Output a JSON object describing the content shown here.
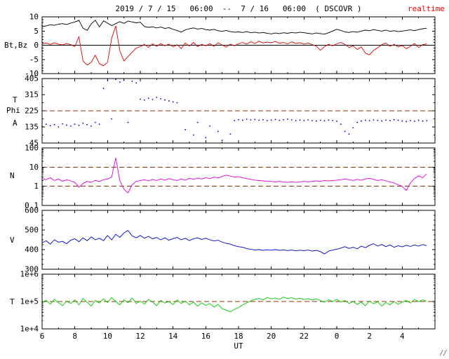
{
  "header": {
    "title": "2019 / 7 / 15   06:00  --  7 / 16   06:00  ( DSCOVR )",
    "status_label": "realtime"
  },
  "colors": {
    "accent_red": "#ff0000",
    "dashed_line": "#993300",
    "bt": "#000000",
    "bz": "#dd0000",
    "phi": "#0000cc",
    "density": "#dd00dd",
    "velocity": "#0000cc",
    "temperature": "#00cc00"
  },
  "panel_labels": {
    "bt_bz": "Bt,Bz",
    "angle_t": "T",
    "angle_phi": "Phi",
    "angle_a": "A",
    "density": "N",
    "velocity": "V",
    "temperature": "T"
  },
  "x_axis": {
    "label": "UT",
    "range": [
      6,
      30
    ],
    "minor_step": 1,
    "tick_positions": [
      6,
      8,
      10,
      12,
      14,
      16,
      18,
      20,
      22,
      24,
      26,
      28
    ],
    "tick_labels": [
      "6",
      "8",
      "10",
      "12",
      "14",
      "16",
      "18",
      "20",
      "22",
      "0",
      "2",
      "4"
    ]
  },
  "corner_mark": "⁄⁄",
  "chart_data": [
    {
      "id": "magnetic-field",
      "type": "line",
      "yscale": "linear",
      "ylim": [
        -10,
        10
      ],
      "ytick_values": [
        10,
        5,
        0,
        -5,
        -10
      ],
      "ytick_labels": [
        "10",
        "5",
        "0",
        "-5",
        "-10"
      ],
      "yminor_step": 1,
      "hlines_solid": [
        0
      ],
      "hlines_dashed": [],
      "x_start": 6,
      "x_step": 0.25,
      "series": [
        {
          "name": "Bt",
          "color": "#000000",
          "values": [
            6.5,
            6.8,
            7.2,
            7.0,
            7.4,
            7.6,
            7.3,
            7.8,
            8.2,
            8.8,
            6.0,
            5.2,
            7.5,
            8.8,
            6.5,
            8.6,
            7.8,
            6.9,
            7.6,
            8.3,
            7.7,
            8.5,
            8.2,
            7.9,
            8.1,
            6.6,
            6.3,
            6.5,
            6.1,
            6.4,
            5.9,
            6.2,
            5.6,
            5.2,
            4.6,
            5.4,
            5.8,
            6.1,
            5.7,
            5.9,
            5.5,
            5.3,
            5.6,
            5.1,
            4.9,
            5.2,
            4.8,
            4.6,
            4.7,
            4.5,
            4.8,
            4.4,
            4.6,
            4.3,
            4.5,
            4.2,
            4.0,
            4.3,
            4.1,
            4.4,
            4.2,
            4.5,
            4.3,
            4.6,
            4.4,
            4.2,
            4.0,
            4.3,
            4.1,
            3.9,
            4.4,
            5.0,
            5.6,
            5.2,
            4.7,
            4.5,
            4.8,
            4.6,
            5.0,
            5.3,
            5.1,
            5.5,
            5.2,
            5.0,
            5.3,
            4.9,
            5.1,
            4.8,
            5.0,
            5.2,
            5.4,
            5.1,
            5.5,
            5.8,
            6.0
          ]
        },
        {
          "name": "Bz",
          "color": "#dd0000",
          "values": [
            0.5,
            0.8,
            0.3,
            0.9,
            0.4,
            0.1,
            0.6,
            0.2,
            -0.5,
            3.0,
            -5.5,
            -7.0,
            -6.0,
            -3.5,
            -6.5,
            -7.2,
            -6.0,
            2.5,
            6.8,
            -2.0,
            -5.5,
            -4.0,
            -2.5,
            -1.0,
            -0.5,
            0.3,
            -0.8,
            0.5,
            -0.4,
            0.6,
            -0.2,
            0.4,
            -0.6,
            0.2,
            -1.2,
            0.8,
            -0.3,
            1.0,
            -0.5,
            0.3,
            -0.2,
            0.6,
            -0.4,
            0.9,
            0.1,
            -0.7,
            0.4,
            -0.2,
            0.5,
            1.0,
            0.4,
            1.2,
            0.6,
            1.4,
            0.8,
            1.1,
            0.9,
            1.3,
            0.7,
            1.0,
            0.5,
            1.2,
            0.6,
            0.9,
            0.4,
            0.8,
            0.2,
            -0.3,
            -1.8,
            -0.5,
            0.3,
            -0.2,
            0.5,
            1.0,
            0.3,
            -0.8,
            -0.2,
            -1.5,
            -0.6,
            -2.8,
            -3.4,
            -1.8,
            -0.9,
            0.2,
            0.8,
            -0.4,
            0.3,
            -0.6,
            -0.1,
            -1.2,
            -0.4,
            0.6,
            -0.8,
            0.2,
            0.5
          ]
        }
      ]
    },
    {
      "id": "phi-angle",
      "type": "scatter",
      "yscale": "linear",
      "ylim": [
        45,
        405
      ],
      "ytick_values": [
        405,
        315,
        225,
        135,
        45
      ],
      "ytick_labels": [
        "405",
        "315",
        "225",
        "135",
        "45"
      ],
      "yminor_step": 45,
      "hlines_solid": [],
      "hlines_dashed": [
        225
      ],
      "x_start": 6,
      "x_step": 0.25,
      "series": [
        {
          "name": "Phi",
          "color": "#0000cc",
          "values": [
            138,
            150,
            142,
            148,
            135,
            152,
            145,
            140,
            150,
            144,
            155,
            148,
            140,
            160,
            150,
            350,
            395,
            180,
            400,
            385,
            395,
            160,
            390,
            380,
            290,
            285,
            295,
            288,
            300,
            292,
            285,
            280,
            275,
            270,
            null,
            120,
            null,
            90,
            160,
            null,
            75,
            140,
            null,
            110,
            60,
            null,
            95,
            170,
            175,
            172,
            178,
            174,
            176,
            172,
            175,
            170,
            173,
            176,
            172,
            175,
            178,
            174,
            170,
            173,
            171,
            174,
            170,
            168,
            172,
            169,
            173,
            170,
            167,
            150,
            110,
            95,
            130,
            160,
            168,
            172,
            170,
            174,
            171,
            168,
            173,
            170,
            175,
            172,
            168,
            165,
            170,
            167,
            172,
            168,
            170
          ]
        }
      ]
    },
    {
      "id": "density",
      "type": "line",
      "yscale": "log",
      "ylim": [
        0.1,
        100
      ],
      "ytick_values": [
        100,
        10,
        1,
        0.1
      ],
      "ytick_labels": [
        "100",
        "10",
        "1",
        "0.1"
      ],
      "hlines_solid": [],
      "hlines_dashed": [
        10,
        1
      ],
      "x_start": 6,
      "x_step": 0.25,
      "series": [
        {
          "name": "N",
          "color": "#dd00dd",
          "values": [
            2.5,
            2.2,
            2.8,
            2.0,
            2.4,
            1.8,
            2.2,
            1.9,
            1.6,
            0.9,
            1.4,
            1.8,
            1.6,
            2.0,
            1.8,
            2.2,
            2.4,
            3.0,
            30.0,
            2.0,
            0.7,
            0.45,
            1.2,
            1.8,
            2.0,
            2.2,
            1.9,
            2.3,
            2.0,
            2.4,
            2.1,
            2.5,
            2.2,
            2.0,
            2.4,
            2.1,
            2.6,
            2.3,
            2.7,
            2.4,
            2.8,
            2.5,
            3.0,
            2.7,
            3.3,
            3.8,
            3.4,
            3.0,
            3.2,
            2.8,
            2.5,
            2.3,
            2.1,
            2.0,
            1.9,
            1.8,
            1.8,
            1.7,
            1.8,
            1.7,
            1.6,
            1.7,
            1.6,
            1.7,
            1.8,
            1.7,
            1.8,
            1.9,
            1.8,
            2.0,
            1.9,
            2.0,
            2.1,
            2.2,
            2.4,
            2.2,
            2.0,
            2.3,
            2.1,
            2.4,
            2.6,
            2.3,
            2.0,
            2.2,
            1.9,
            1.7,
            1.5,
            1.2,
            1.0,
            0.6,
            1.5,
            2.5,
            3.5,
            2.8,
            4.5
          ]
        }
      ]
    },
    {
      "id": "velocity",
      "type": "line",
      "yscale": "linear",
      "ylim": [
        300,
        600
      ],
      "ytick_values": [
        600,
        500,
        400,
        300
      ],
      "ytick_labels": [
        "600",
        "500",
        "400",
        "300"
      ],
      "yminor_step": 25,
      "hlines_solid": [],
      "hlines_dashed": [],
      "x_start": 6,
      "x_step": 0.25,
      "series": [
        {
          "name": "V",
          "color": "#0000cc",
          "values": [
            435,
            445,
            428,
            450,
            438,
            442,
            430,
            448,
            455,
            440,
            460,
            445,
            465,
            450,
            458,
            446,
            472,
            450,
            478,
            462,
            485,
            498,
            470,
            460,
            472,
            458,
            468,
            455,
            462,
            450,
            460,
            448,
            456,
            462,
            450,
            458,
            446,
            455,
            460,
            452,
            458,
            450,
            444,
            448,
            438,
            432,
            428,
            420,
            415,
            412,
            405,
            402,
            398,
            400,
            396,
            399,
            397,
            400,
            396,
            399,
            395,
            398,
            394,
            397,
            395,
            398,
            393,
            396,
            390,
            378,
            392,
            398,
            402,
            408,
            415,
            406,
            412,
            404,
            418,
            410,
            422,
            430,
            418,
            426,
            415,
            424,
            412,
            420,
            414,
            422,
            416,
            424,
            418,
            426,
            420
          ]
        }
      ]
    },
    {
      "id": "temperature",
      "type": "line",
      "yscale": "log",
      "ylim": [
        10000,
        1000000
      ],
      "ytick_values": [
        1000000,
        100000,
        10000
      ],
      "ytick_labels": [
        "1e+6",
        "1e+5",
        "1e+4"
      ],
      "hlines_solid": [],
      "hlines_dashed": [
        100000
      ],
      "x_start": 6,
      "x_step": 0.25,
      "series": [
        {
          "name": "T",
          "color": "#00cc00",
          "values": [
            95000,
            110000,
            80000,
            120000,
            90000,
            70000,
            105000,
            85000,
            115000,
            75000,
            130000,
            95000,
            68000,
            110000,
            88000,
            125000,
            92000,
            140000,
            100000,
            75000,
            115000,
            90000,
            135000,
            85000,
            105000,
            80000,
            120000,
            95000,
            70000,
            110000,
            88000,
            100000,
            78000,
            115000,
            85000,
            105000,
            75000,
            95000,
            68000,
            90000,
            72000,
            85000,
            62000,
            78000,
            55000,
            48000,
            42000,
            52000,
            60000,
            75000,
            90000,
            105000,
            120000,
            130000,
            115000,
            140000,
            125000,
            135000,
            120000,
            145000,
            128000,
            138000,
            122000,
            132000,
            118000,
            128000,
            112000,
            125000,
            108000,
            95000,
            115000,
            100000,
            120000,
            95000,
            110000,
            85000,
            100000,
            78000,
            95000,
            70000,
            105000,
            82000,
            98000,
            68000,
            92000,
            75000,
            100000,
            80000,
            95000,
            110000,
            88000,
            120000,
            98000,
            115000,
            100000
          ]
        }
      ]
    }
  ]
}
